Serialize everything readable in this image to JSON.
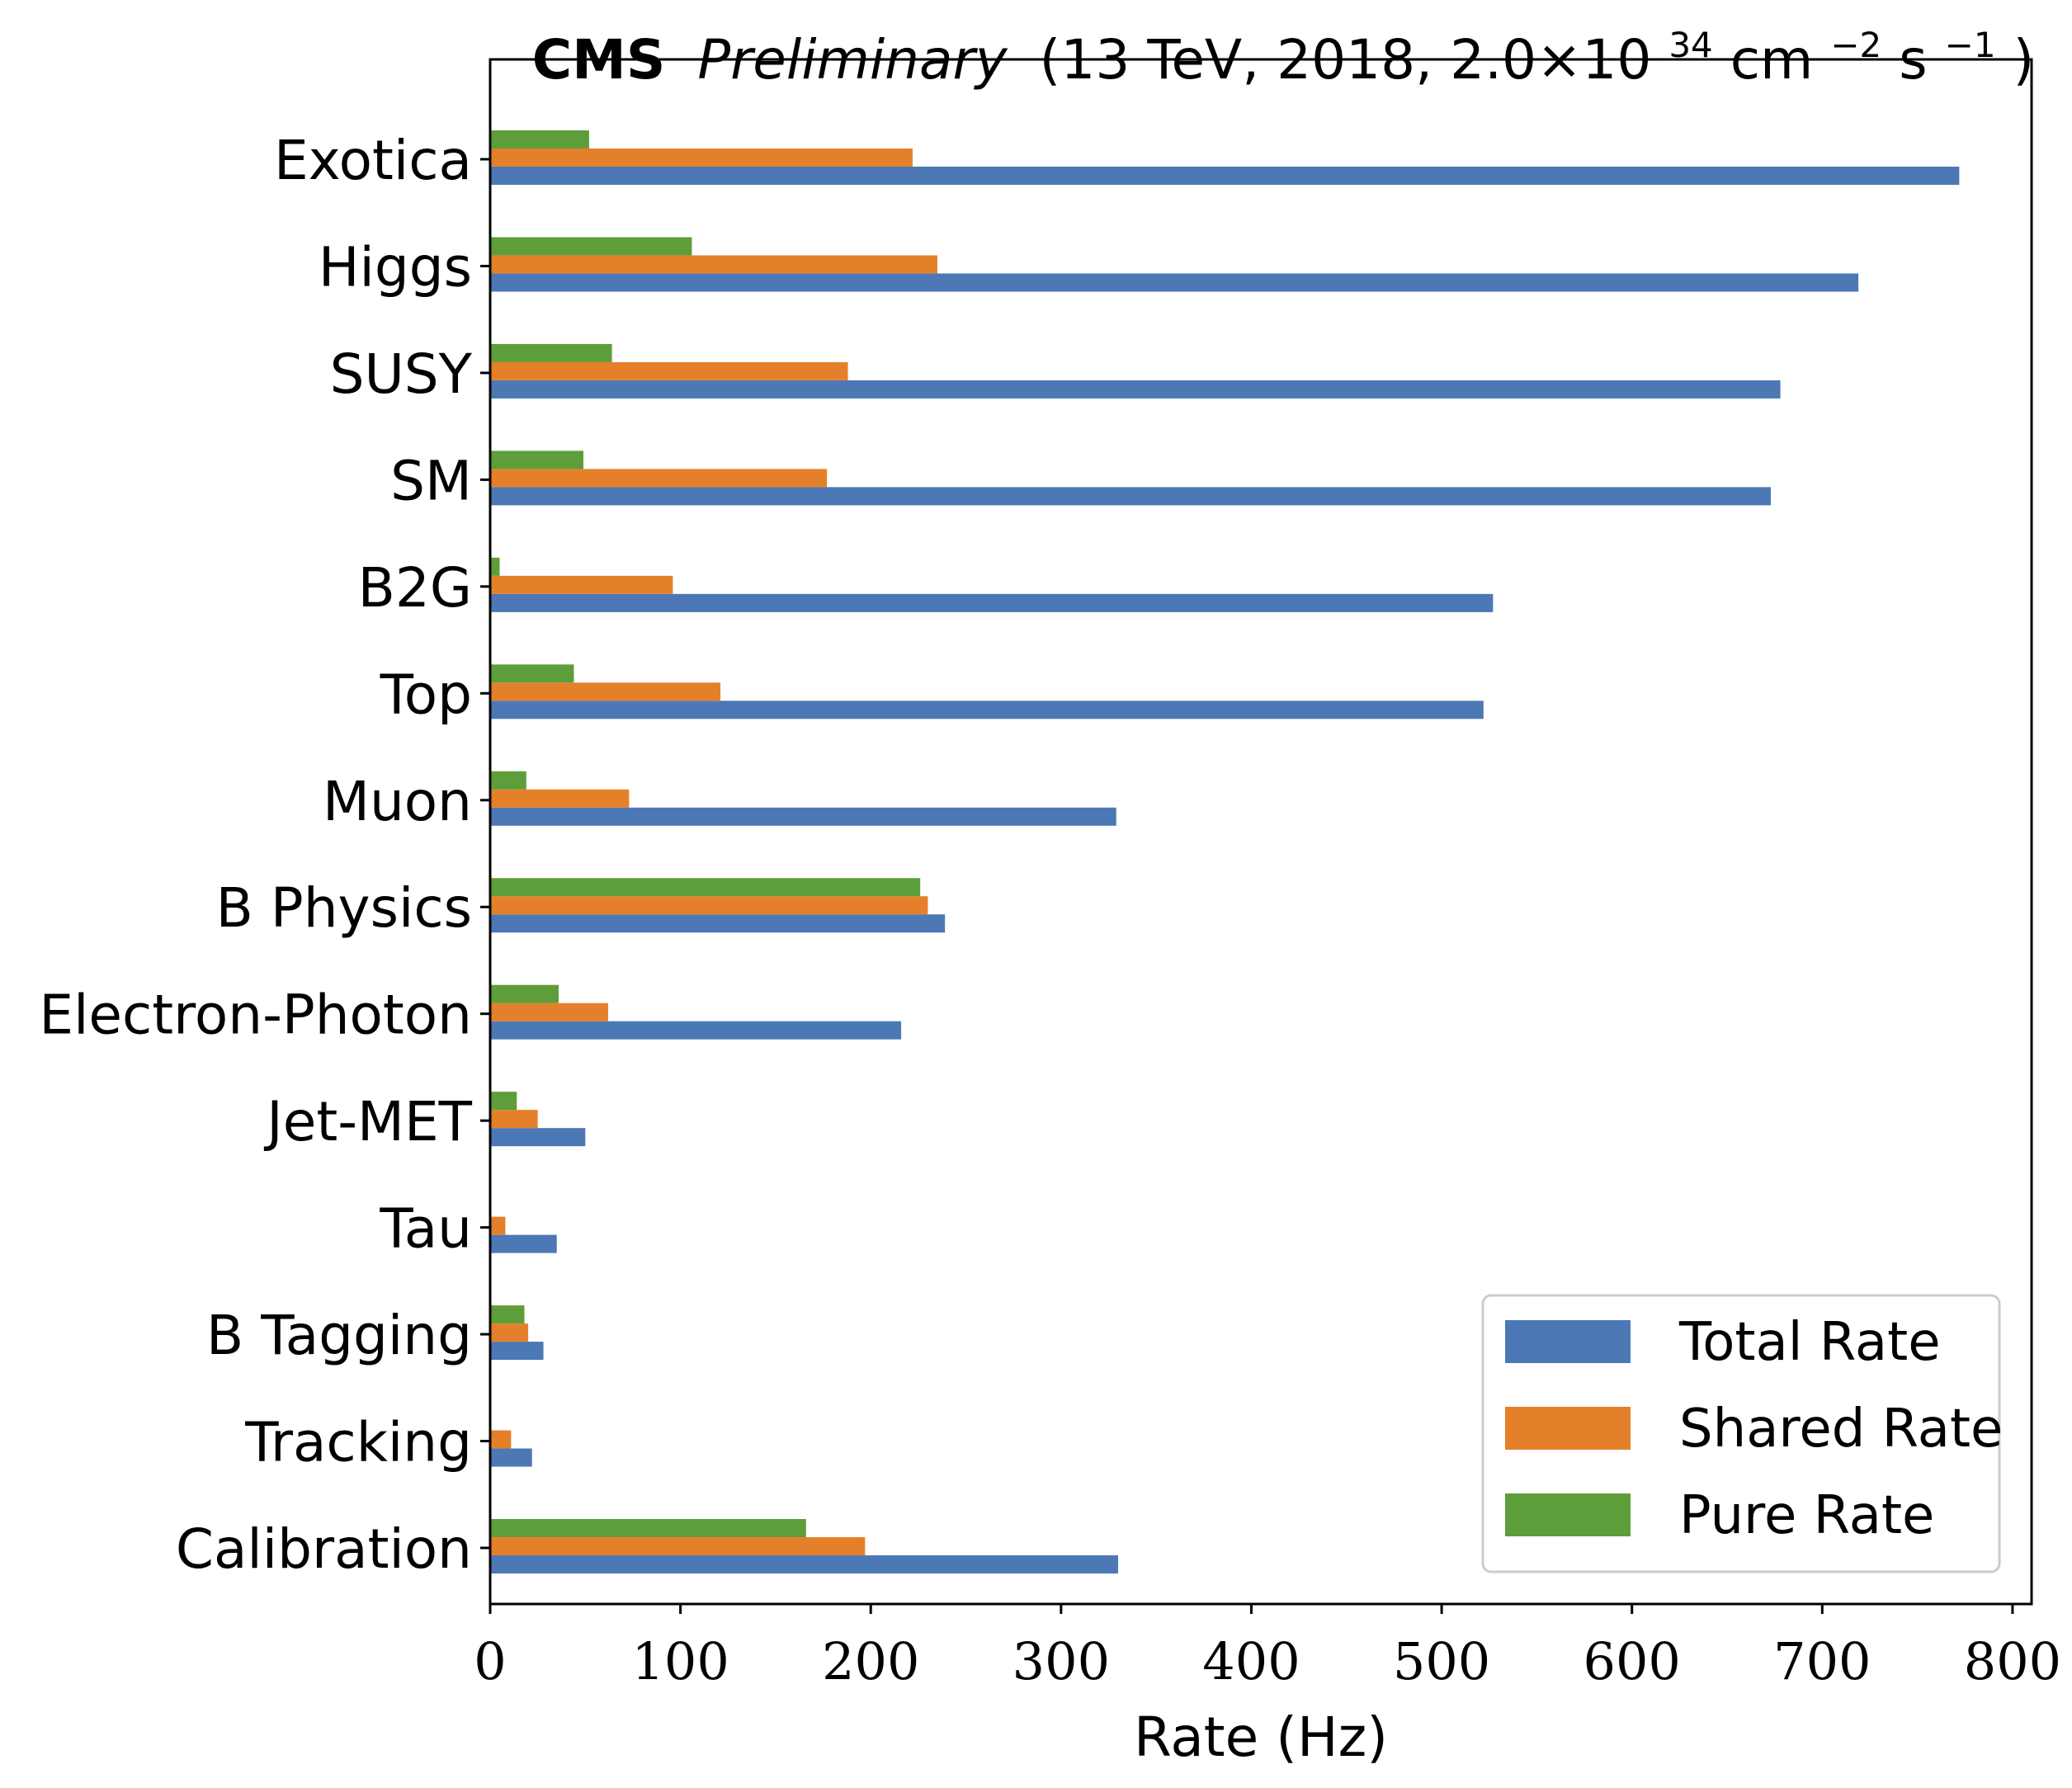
{
  "chart_data": {
    "type": "bar",
    "orientation": "horizontal",
    "title": {
      "bold": "CMS",
      "italic": "Preliminary",
      "rest_prefix": "(13 TeV, 2018, 2.0×10",
      "exp1": "34",
      "mid": " cm",
      "exp2": "−2",
      "mid2": "s",
      "exp3": "−1",
      "suffix": ")"
    },
    "xlabel": "Rate (Hz)",
    "ylabel": "",
    "xlim": [
      0,
      810
    ],
    "xticks": [
      0,
      100,
      200,
      300,
      400,
      500,
      600,
      700,
      800
    ],
    "categories": [
      "Exotica",
      "Higgs",
      "SUSY",
      "SM",
      "B2G",
      "Top",
      "Muon",
      "B Physics",
      "Electron-Photon",
      "Jet-MET",
      "Tau",
      "B Tagging",
      "Tracking",
      "Calibration"
    ],
    "series": [
      {
        "name": "Total Rate",
        "color": "#4c78b5",
        "values": [
          772,
          719,
          678,
          673,
          527,
          522,
          329,
          239,
          216,
          50,
          35,
          28,
          22,
          330
        ]
      },
      {
        "name": "Shared Rate",
        "color": "#e5802a",
        "values": [
          222,
          235,
          188,
          177,
          96,
          121,
          73,
          230,
          62,
          25,
          8,
          20,
          11,
          197
        ]
      },
      {
        "name": "Pure Rate",
        "color": "#5e9e3a",
        "values": [
          52,
          106,
          64,
          49,
          5,
          44,
          19,
          226,
          36,
          14,
          0,
          18,
          0,
          166
        ]
      }
    ],
    "grid": false,
    "legend": "bottom-right"
  }
}
